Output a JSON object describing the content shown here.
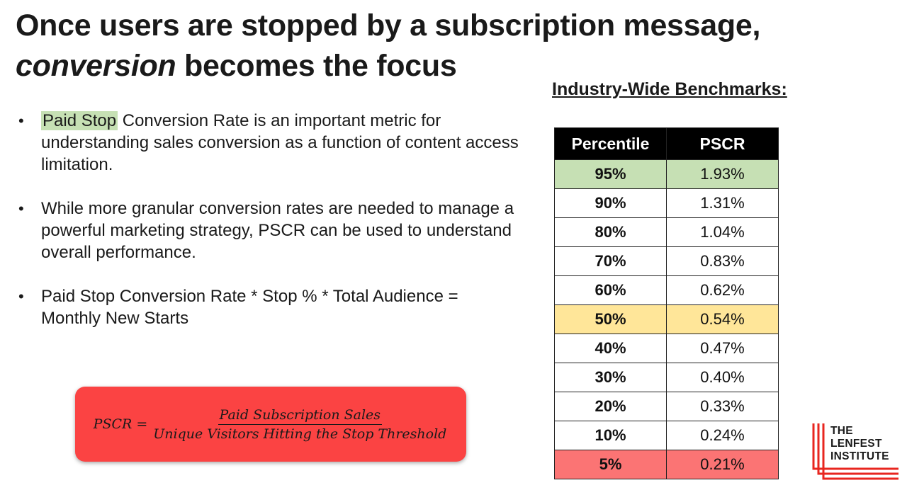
{
  "title": {
    "line1": "Once users are stopped by a subscription message,",
    "line2_italic": "conversion",
    "line2_rest": " becomes the focus"
  },
  "bullets": [
    {
      "highlight": "Paid Stop",
      "text": " Conversion Rate is an important metric for understanding sales conversion as a function of content access limitation."
    },
    {
      "text": "While more granular conversion rates are needed to manage a powerful marketing strategy, PSCR can be used to understand overall performance."
    },
    {
      "text": "Paid Stop Conversion Rate * Stop % * Total Audience = Monthly New Starts"
    }
  ],
  "formula": {
    "lhs": "PSCR =",
    "numerator": "Paid Subscription Sales",
    "denominator": "Unique Visitors Hitting the Stop Threshold"
  },
  "benchmarks": {
    "title": "Industry-Wide Benchmarks:",
    "headers": [
      "Percentile",
      "PSCR"
    ],
    "rows": [
      {
        "percentile": "95%",
        "pscr": "1.93%"
      },
      {
        "percentile": "90%",
        "pscr": "1.31%"
      },
      {
        "percentile": "80%",
        "pscr": "1.04%"
      },
      {
        "percentile": "70%",
        "pscr": "0.83%"
      },
      {
        "percentile": "60%",
        "pscr": "0.62%"
      },
      {
        "percentile": "50%",
        "pscr": "0.54%"
      },
      {
        "percentile": "40%",
        "pscr": "0.47%"
      },
      {
        "percentile": "30%",
        "pscr": "0.40%"
      },
      {
        "percentile": "20%",
        "pscr": "0.33%"
      },
      {
        "percentile": "10%",
        "pscr": "0.24%"
      },
      {
        "percentile": "5%",
        "pscr": "0.21%"
      }
    ],
    "colors": {
      "header_bg": "#000000",
      "top_row": "#c6e0b4",
      "median_row": "#ffe699",
      "bottom_row": "#fb7474"
    }
  },
  "logo": {
    "line1": "THE",
    "line2": "LENFEST",
    "line3": "INSTITUTE",
    "color": "#e8261f"
  }
}
